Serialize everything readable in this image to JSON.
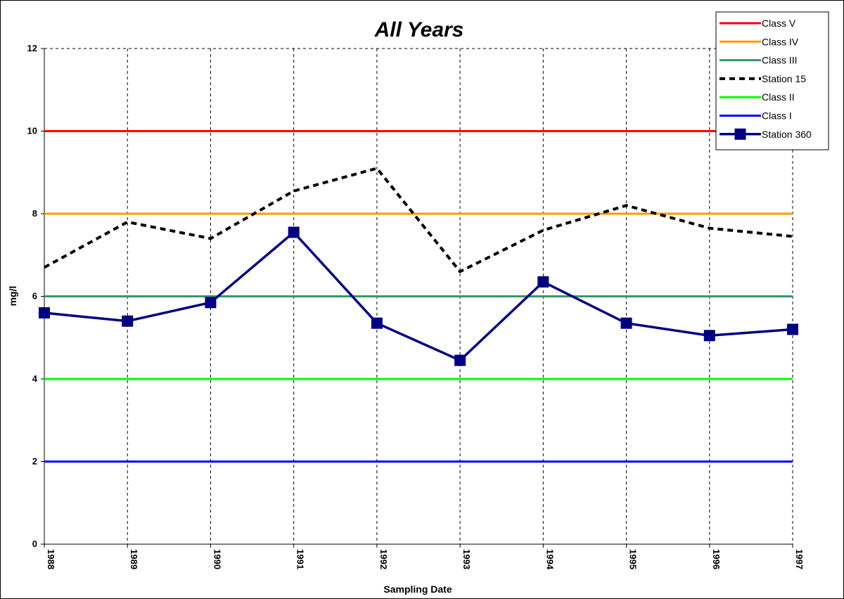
{
  "chart_data": {
    "type": "line",
    "title": "All Years",
    "xlabel": "Sampling Date",
    "ylabel": "mg/l",
    "categories": [
      "1988",
      "1989",
      "1990",
      "1991",
      "1992",
      "1993",
      "1994",
      "1995",
      "1996",
      "1997"
    ],
    "ylim": [
      0,
      12
    ],
    "yticks": [
      "0",
      "2",
      "4",
      "6",
      "8",
      "10",
      "12"
    ],
    "grid": "dashed vertical and top/right border",
    "legend_position": "top-right",
    "series": [
      {
        "name": "Class V",
        "values": [
          10,
          10,
          10,
          10,
          10,
          10,
          10,
          10,
          10,
          10
        ],
        "color": "#ff0000",
        "style": "solid"
      },
      {
        "name": "Class IV",
        "values": [
          8,
          8,
          8,
          8,
          8,
          8,
          8,
          8,
          8,
          8
        ],
        "color": "#ff9900",
        "style": "solid"
      },
      {
        "name": "Class III",
        "values": [
          6,
          6,
          6,
          6,
          6,
          6,
          6,
          6,
          6,
          6
        ],
        "color": "#339966",
        "style": "solid"
      },
      {
        "name": "Station 15",
        "values": [
          6.7,
          7.8,
          7.4,
          8.55,
          9.1,
          6.6,
          7.6,
          8.2,
          7.65,
          7.45
        ],
        "color": "#000000",
        "style": "dotted"
      },
      {
        "name": "Class II",
        "values": [
          4,
          4,
          4,
          4,
          4,
          4,
          4,
          4,
          4,
          4
        ],
        "color": "#00ff00",
        "style": "solid"
      },
      {
        "name": "Class I",
        "values": [
          2,
          2,
          2,
          2,
          2,
          2,
          2,
          2,
          2,
          2
        ],
        "color": "#0000ff",
        "style": "solid"
      },
      {
        "name": "Station 360",
        "values": [
          5.6,
          5.4,
          5.85,
          7.55,
          5.35,
          4.45,
          6.35,
          5.35,
          5.05,
          5.2
        ],
        "color": "#000080",
        "style": "marker"
      }
    ]
  }
}
